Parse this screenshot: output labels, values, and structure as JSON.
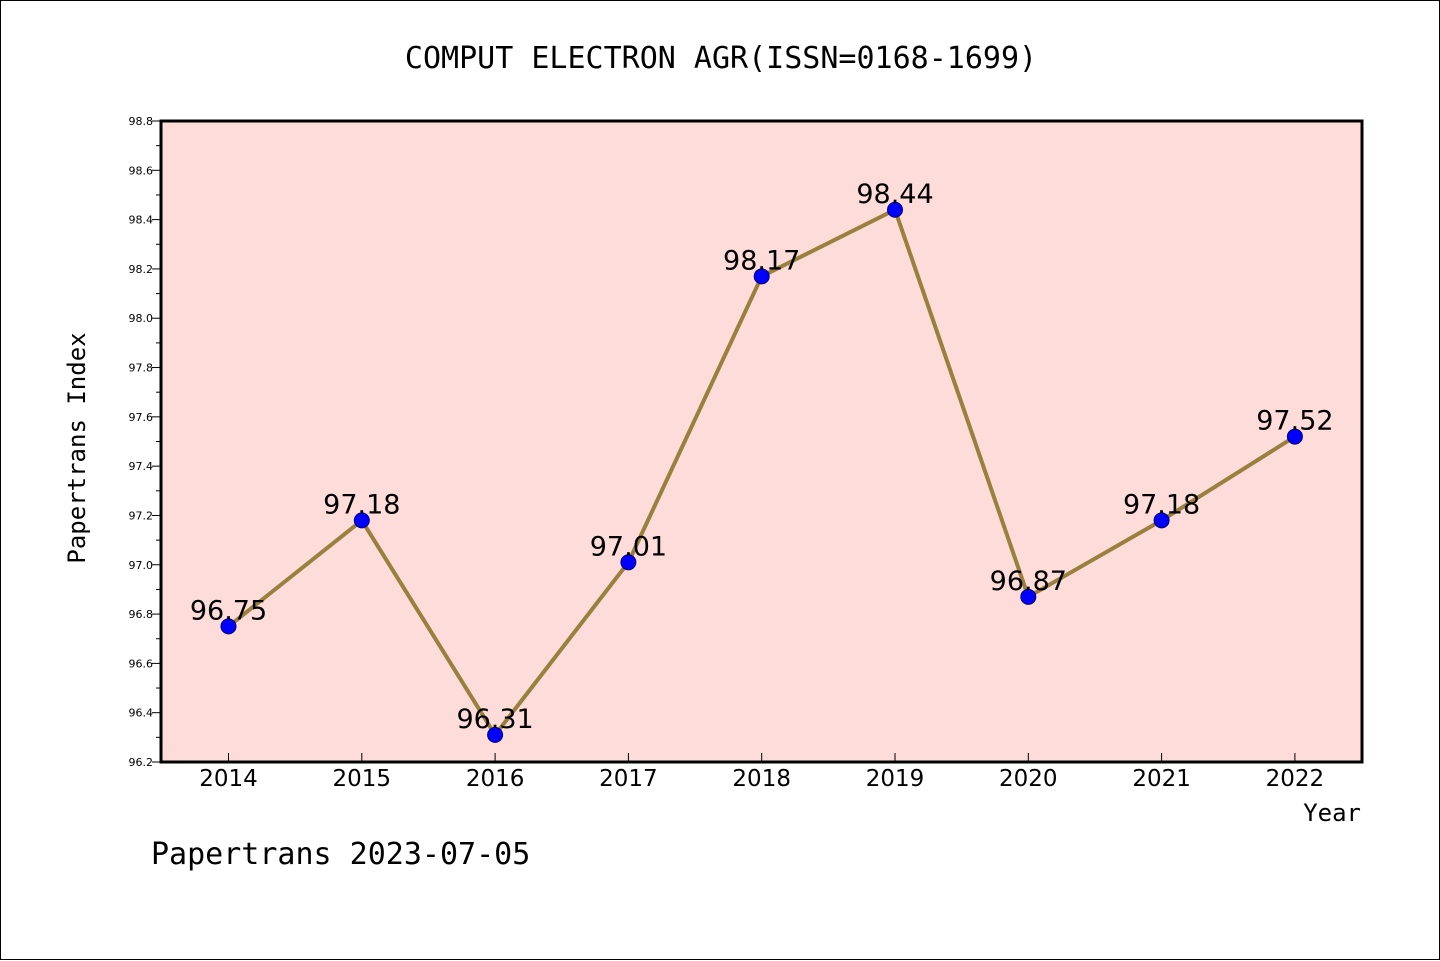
{
  "chart_data": {
    "type": "line",
    "title": "COMPUT ELECTRON AGR(ISSN=0168-1699)",
    "xlabel": "Year",
    "ylabel": "Papertrans Index",
    "categories": [
      "2014",
      "2015",
      "2016",
      "2017",
      "2018",
      "2019",
      "2020",
      "2021",
      "2022"
    ],
    "series": [
      {
        "values": [
          96.75,
          97.18,
          96.31,
          97.01,
          98.17,
          98.44,
          96.87,
          97.18,
          97.52
        ]
      }
    ],
    "data_labels": [
      "96.75",
      "97.18",
      "96.31",
      "97.01",
      "98.17",
      "98.44",
      "96.87",
      "97.18",
      "97.52"
    ],
    "ylim": [
      96.2,
      98.8
    ],
    "yticks": [
      "96.2",
      "96.4",
      "96.6",
      "96.8",
      "97.0",
      "97.2",
      "97.4",
      "97.6",
      "97.8",
      "98.0",
      "98.2",
      "98.4",
      "98.6",
      "98.8"
    ],
    "grid": false,
    "colors": {
      "plot_background": "#FDDCDA",
      "line": "#9A7F3D",
      "marker": "#0000FF"
    }
  },
  "footer": "Papertrans 2023-07-05"
}
